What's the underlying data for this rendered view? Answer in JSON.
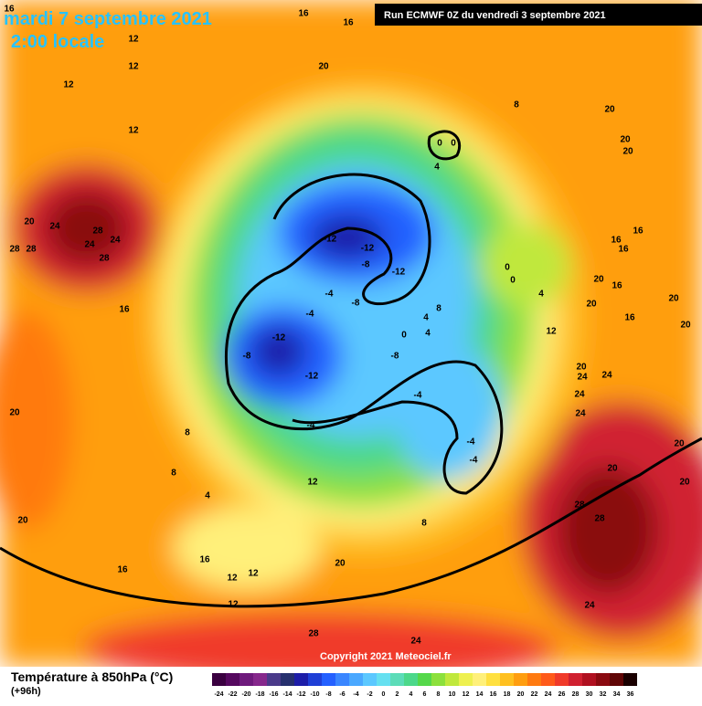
{
  "header": {
    "date": "mardi 7 septembre 2021",
    "time": "2:00 locale",
    "run": "Run ECMWF 0Z du vendredi 3 septembre 2021"
  },
  "copyright": "Copyright 2021 Meteociel.fr",
  "legend": {
    "title": "Température à 850hPa (°C)",
    "lead": "(+96h)",
    "ticks": [
      -24,
      -22,
      -20,
      -18,
      -16,
      -14,
      -12,
      -10,
      -8,
      -6,
      -4,
      -2,
      0,
      2,
      4,
      6,
      8,
      10,
      12,
      14,
      16,
      18,
      20,
      22,
      24,
      26,
      28,
      30,
      32,
      34,
      36
    ],
    "colors": [
      "#3a0040",
      "#55085f",
      "#6e1a7c",
      "#86288c",
      "#4a3a8a",
      "#26306e",
      "#1d1da8",
      "#1f3fd6",
      "#2460ff",
      "#3a86ff",
      "#4aa8ff",
      "#5cc8ff",
      "#66e0f0",
      "#5cdcb8",
      "#4cd88a",
      "#55d84a",
      "#8ce03c",
      "#c0e83c",
      "#eef050",
      "#fff07a",
      "#ffe040",
      "#ffc020",
      "#ff9e10",
      "#ff7a10",
      "#ff5a1a",
      "#f03a2a",
      "#d02030",
      "#b01020",
      "#8a0a10",
      "#600606",
      "#1a0000"
    ]
  },
  "map": {
    "labels": [
      "16",
      "16",
      "16",
      "12",
      "12",
      "20",
      "12",
      "8",
      "20",
      "12",
      "0",
      "0",
      "4",
      "20",
      "20",
      "20",
      "24",
      "28",
      "24",
      "24",
      "28",
      "28",
      "28",
      "16",
      "16",
      "16",
      "-12",
      "-12",
      "-8",
      "-12",
      "0",
      "0",
      "4",
      "20",
      "16",
      "20",
      "-4",
      "-8",
      "8",
      "-4",
      "20",
      "16",
      "16",
      "20",
      "4",
      "12",
      "-12",
      "0",
      "4",
      "-8",
      "-8",
      "20",
      "24",
      "24",
      "-12",
      "-4",
      "24",
      "24",
      "20",
      "-4",
      "-4",
      "8",
      "-4",
      "20",
      "8",
      "12",
      "20",
      "20",
      "4",
      "28",
      "28",
      "20",
      "8",
      "16",
      "16",
      "20",
      "12",
      "12",
      "12",
      "24",
      "28",
      "24"
    ]
  }
}
